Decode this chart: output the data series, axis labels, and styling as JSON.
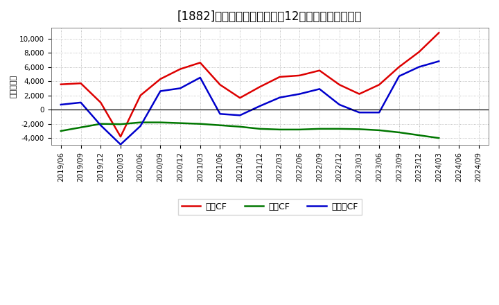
{
  "title": "[1882]　キャッシュフローの12か月移動合計の推移",
  "ylabel": "（百万円）",
  "background_color": "#ffffff",
  "plot_bg_color": "#ffffff",
  "grid_color": "#aaaaaa",
  "x_labels": [
    "2019/06",
    "2019/09",
    "2019/12",
    "2020/03",
    "2020/06",
    "2020/09",
    "2020/12",
    "2021/03",
    "2021/06",
    "2021/09",
    "2021/12",
    "2022/03",
    "2022/06",
    "2022/09",
    "2022/12",
    "2023/03",
    "2023/06",
    "2023/09",
    "2023/12",
    "2024/03",
    "2024/06",
    "2024/09"
  ],
  "operating_cf": [
    3550,
    3700,
    1000,
    -3800,
    2000,
    4300,
    5700,
    6600,
    3500,
    1650,
    3200,
    4600,
    4800,
    5500,
    3500,
    2200,
    3500,
    6000,
    8100,
    10800,
    null,
    null
  ],
  "investing_cf": [
    -3000,
    -2500,
    -2000,
    -2050,
    -1800,
    -1800,
    -1900,
    -2000,
    -2200,
    -2400,
    -2700,
    -2800,
    -2800,
    -2700,
    -2700,
    -2750,
    -2900,
    -3200,
    -3600,
    -4000,
    null,
    null
  ],
  "free_cf": [
    700,
    1000,
    -2200,
    -4900,
    -2300,
    2600,
    3000,
    4500,
    -600,
    -800,
    500,
    1700,
    2200,
    2900,
    700,
    -400,
    -400,
    4700,
    6000,
    6800,
    null,
    null
  ],
  "op_label": "営業CF",
  "inv_label": "投資CF",
  "free_label": "フリーCF",
  "op_color": "#dd0000",
  "inv_color": "#007700",
  "free_color": "#0000cc",
  "linewidth": 1.8,
  "ylim": [
    -5000,
    11500
  ],
  "yticks": [
    -4000,
    -2000,
    0,
    2000,
    4000,
    6000,
    8000,
    10000
  ],
  "title_fontsize": 12,
  "legend_fontsize": 9,
  "tick_fontsize": 7.5,
  "ylabel_fontsize": 8
}
